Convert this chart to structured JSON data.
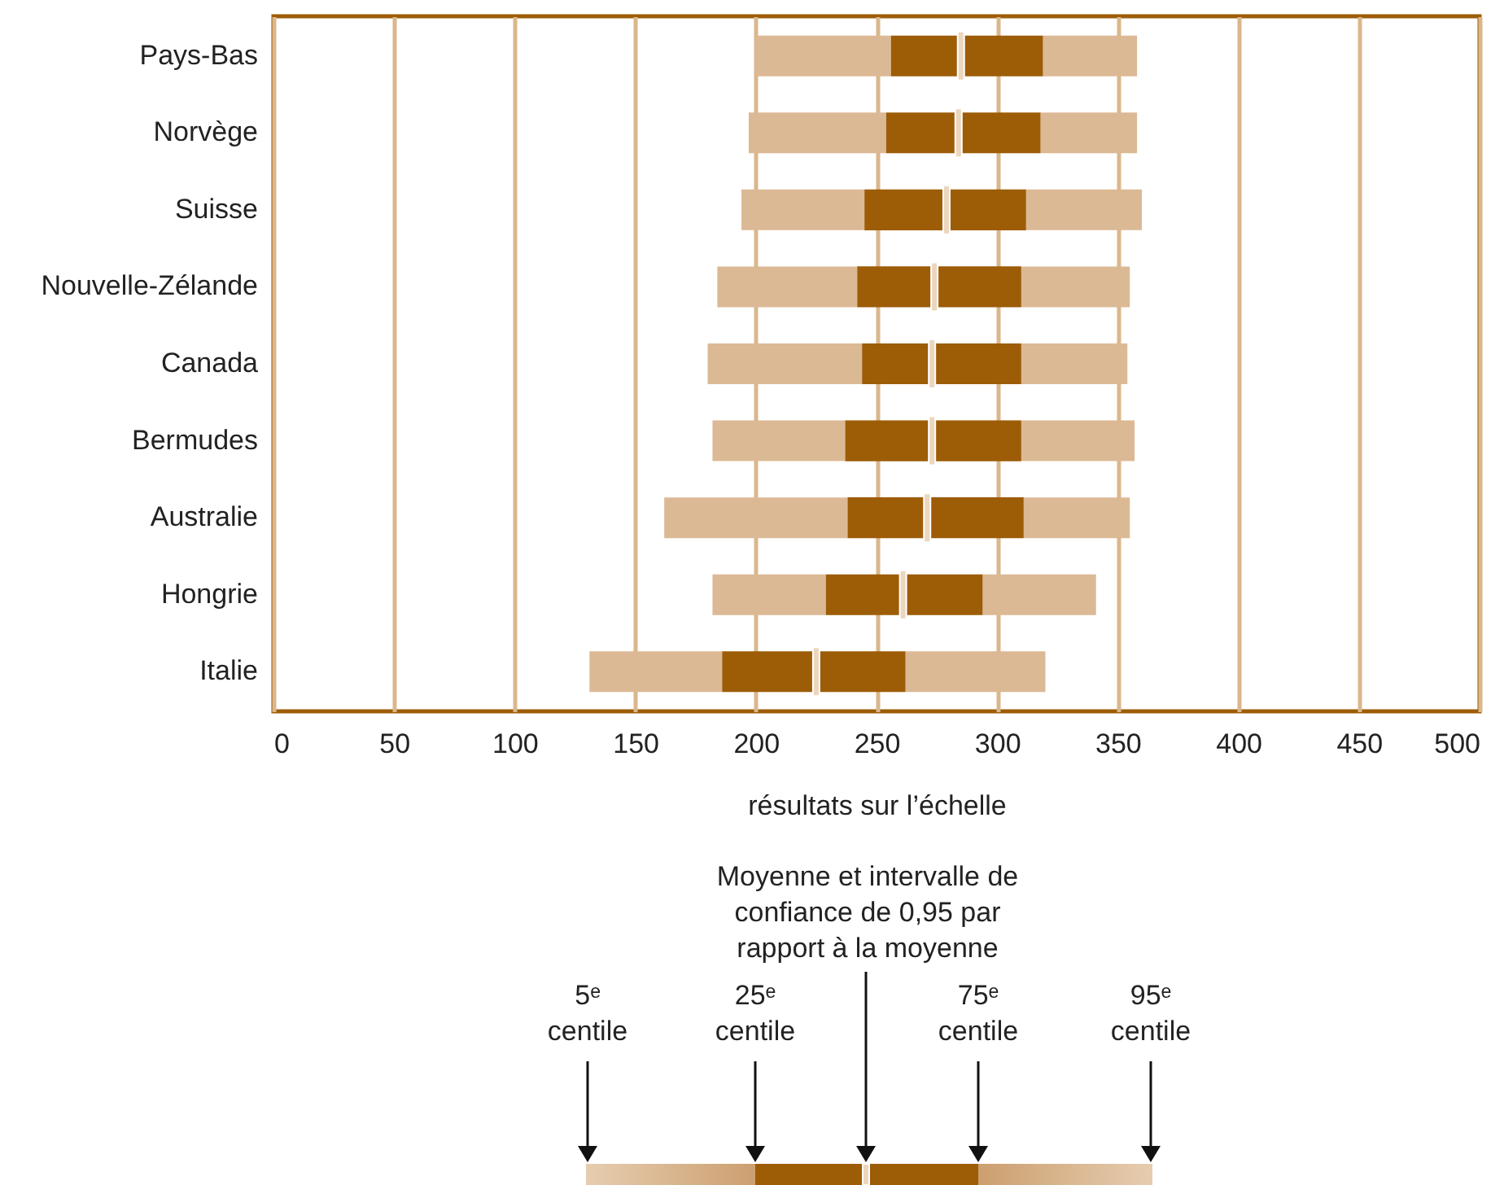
{
  "chart_data": {
    "type": "box",
    "orientation": "horizontal",
    "xlabel": "résultats sur l’échelle",
    "categories": [
      "Pays-Bas",
      "Norvège",
      "Suisse",
      "Nouvelle-Zélande",
      "Canada",
      "Bermudes",
      "Australie",
      "Hongrie",
      "Italie"
    ],
    "series": [
      {
        "color": "#9d5c06",
        "boxes": [
          {
            "low": 200,
            "q1": 256,
            "median": 285,
            "q3": 319,
            "high": 358
          },
          {
            "low": 197,
            "q1": 254,
            "median": 284,
            "q3": 318,
            "high": 358
          },
          {
            "low": 194,
            "q1": 245,
            "median": 279,
            "q3": 312,
            "high": 360
          },
          {
            "low": 184,
            "q1": 242,
            "median": 274,
            "q3": 310,
            "high": 355
          },
          {
            "low": 180,
            "q1": 244,
            "median": 273,
            "q3": 310,
            "high": 354
          },
          {
            "low": 182,
            "q1": 237,
            "median": 273,
            "q3": 310,
            "high": 357
          },
          {
            "low": 162,
            "q1": 238,
            "median": 271,
            "q3": 311,
            "high": 355
          },
          {
            "low": 182,
            "q1": 229,
            "median": 261,
            "q3": 294,
            "high": 341
          },
          {
            "low": 131,
            "q1": 186,
            "median": 225,
            "q3": 262,
            "high": 320
          }
        ]
      }
    ],
    "xlim": [
      0,
      500
    ],
    "xticks": [
      0,
      50,
      100,
      150,
      200,
      250,
      300,
      350,
      400,
      450,
      500
    ],
    "grid": "x",
    "annotations": [
      "Moyenne et intervalle de confiance de 0,95 par rapport à la moyenne",
      "5ᵉ centile",
      "25ᵉ centile",
      "75ᵉ centile",
      "95ᵉ centile"
    ]
  }
}
